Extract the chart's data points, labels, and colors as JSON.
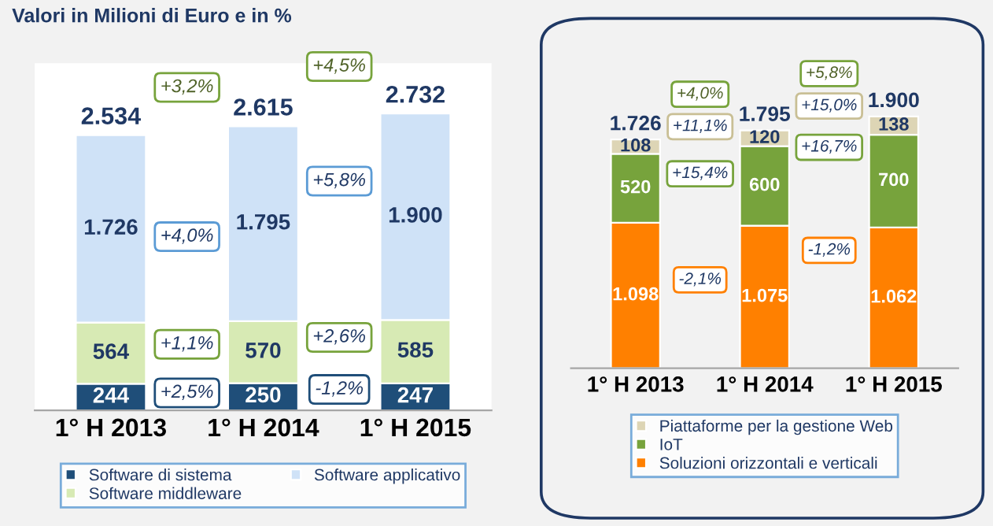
{
  "chart_data": [
    {
      "type": "bar",
      "stacked": true,
      "title": "Valori in Milioni di Euro e in %",
      "categories": [
        "1° H 2013",
        "1° H 2014",
        "1° H 2015"
      ],
      "legend": "bottom",
      "grid": false,
      "series": [
        {
          "name": "Software di sistema",
          "color": "#1f4e79",
          "values": [
            244,
            250,
            247
          ],
          "value_labels": [
            "244",
            "250",
            "247"
          ]
        },
        {
          "name": "Software middleware",
          "color": "#d7eab4",
          "values": [
            564,
            570,
            585
          ],
          "value_labels": [
            "564",
            "570",
            "585"
          ]
        },
        {
          "name": "Software applicativo",
          "color": "#cfe2f7",
          "values": [
            1726,
            1795,
            1900
          ],
          "value_labels": [
            "1.726",
            "1.795",
            "1.900"
          ]
        }
      ],
      "totals": [
        "2.534",
        "2.615",
        "2.732"
      ],
      "annotations": [
        "+3,2%",
        "+4,5%",
        "+4,0%",
        "+5,8%",
        "+1,1%",
        "+2,6%",
        "+2,5%",
        "-1,2%"
      ]
    },
    {
      "type": "bar",
      "stacked": true,
      "categories": [
        "1° H 2013",
        "1° H 2014",
        "1° H 2015"
      ],
      "legend": "bottom",
      "grid": false,
      "series": [
        {
          "name": "Soluzioni orizzontali e verticali",
          "color": "#ff8000",
          "values": [
            1098,
            1075,
            1062
          ],
          "value_labels": [
            "1.098",
            "1.075",
            "1.062"
          ]
        },
        {
          "name": "IoT",
          "color": "#77a33c",
          "values": [
            520,
            600,
            700
          ],
          "value_labels": [
            "520",
            "600",
            "700"
          ]
        },
        {
          "name": "Piattaforme per la gestione Web",
          "color": "#ddd5b5",
          "values": [
            108,
            120,
            138
          ],
          "value_labels": [
            "108",
            "120",
            "138"
          ]
        }
      ],
      "totals": [
        "1.726",
        "1.795",
        "1.900"
      ],
      "annotations": [
        "+4,0%",
        "+5,8%",
        "+11,1%",
        "+15,0%",
        "+15,4%",
        "+16,7%",
        "-2,1%",
        "-1,2%"
      ]
    }
  ]
}
